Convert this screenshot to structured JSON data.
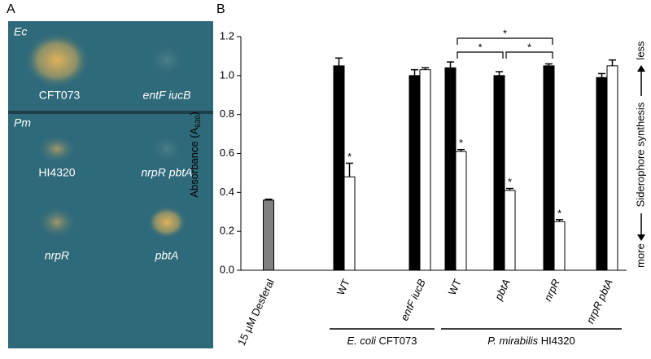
{
  "panel_a": {
    "panel_label": "A",
    "top_plate": {
      "label": "Ec",
      "spots": [
        "CFT073",
        "entF iucB"
      ]
    },
    "bottom_plate": {
      "label": "Pm",
      "spots": [
        "HI4320",
        "nrpR pbtA",
        "nrpR",
        "pbtA"
      ]
    }
  },
  "chart_data": {
    "type": "bar",
    "panel_label": "B",
    "y_label": {
      "text": "Absorbance (A",
      "sub": "630",
      "end": ")"
    },
    "right_label": {
      "low": "more",
      "text": "Siderophore synthesis",
      "high": "less"
    },
    "categories": [
      "15 μM Desferal",
      "WT",
      "entF iucB",
      "WT",
      "pbtA",
      "nrpR",
      "nrpR pbtA"
    ],
    "groups": [
      {
        "italic": "E. coli",
        "text": "CFT073",
        "from": 1,
        "to": 2
      },
      {
        "italic": "P. mirabilis",
        "text": "HI4320",
        "from": 3,
        "to": 6
      }
    ],
    "series": [
      {
        "color": "#808080",
        "values": [
          0.36,
          null,
          null,
          null,
          null,
          null,
          null
        ],
        "errors": [
          0.005,
          null,
          null,
          null,
          null,
          null,
          null
        ]
      },
      {
        "color": "#000000",
        "values": [
          null,
          1.05,
          1.0,
          1.04,
          1.0,
          1.05,
          0.99
        ],
        "errors": [
          null,
          0.04,
          0.03,
          0.03,
          0.02,
          0.01,
          0.02
        ]
      },
      {
        "color": "#ffffff",
        "values": [
          null,
          0.48,
          1.03,
          0.61,
          0.41,
          0.25,
          1.05
        ],
        "errors": [
          null,
          0.07,
          0.01,
          0.01,
          0.01,
          0.01,
          0.03
        ]
      }
    ],
    "stars": [
      {
        "at": 1,
        "label": "*"
      },
      {
        "at": 3,
        "label": "*"
      },
      {
        "at": 4,
        "label": "*"
      },
      {
        "at": 5,
        "label": "*"
      }
    ],
    "brackets": [
      {
        "from": 3,
        "to": 5,
        "label": "*"
      },
      {
        "from": 3,
        "to": 4,
        "label": "*"
      },
      {
        "from": 4,
        "to": 5,
        "label": "*"
      }
    ],
    "ylim": [
      0,
      1.2
    ],
    "yticks": [
      {
        "value": 0,
        "label": "0.0"
      },
      {
        "value": 0.2,
        "label": "0.2"
      },
      {
        "value": 0.4,
        "label": "0.4"
      },
      {
        "value": 0.6,
        "label": "0.6"
      },
      {
        "value": 0.8,
        "label": "0.8"
      },
      {
        "value": 1,
        "label": "1.0"
      },
      {
        "value": 1.2,
        "label": "1.2"
      }
    ]
  }
}
